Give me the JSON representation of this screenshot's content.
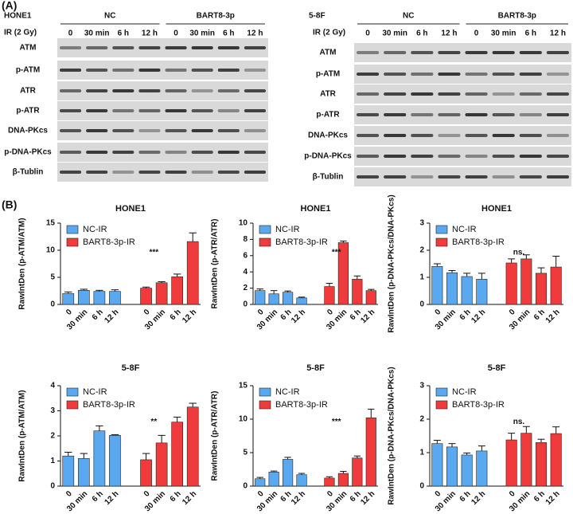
{
  "panel_a": {
    "label": "(A)",
    "blots": [
      {
        "cell": "HONE1",
        "ir_label": "IR (2 Gy)",
        "groups": [
          "NC",
          "BART8-3p"
        ],
        "lanes": [
          "0",
          "30 min",
          "6 h",
          "12 h"
        ],
        "proteins": [
          "ATM",
          "p-ATM",
          "ATR",
          "p-ATR",
          "DNA-PKcs",
          "p-DNA-PKcs",
          "β-Tublin"
        ]
      },
      {
        "cell": "5-8F",
        "ir_label": "IR (2 Gy)",
        "groups": [
          "NC",
          "BART8-3p"
        ],
        "lanes": [
          "0",
          "30 min",
          "6 h",
          "12 h"
        ],
        "proteins": [
          "ATM",
          "p-ATM",
          "ATR",
          "p-ATR",
          "DNA-PKcs",
          "p-DNA-PKcs",
          "β-Tublin"
        ]
      }
    ]
  },
  "panel_b": {
    "label": "(B)"
  },
  "chart_data": [
    {
      "type": "bar",
      "title": "HONE1",
      "y_label": "RawIntDen (p-ATM/ATM)",
      "categories": [
        "0",
        "30 min",
        "6 h",
        "12 h"
      ],
      "series": [
        {
          "name": "NC-IR",
          "color": "#5aa8ef",
          "values": [
            2.0,
            2.6,
            2.4,
            2.4
          ],
          "errors": [
            0.3,
            0.2,
            0.2,
            0.3
          ]
        },
        {
          "name": "BART8-3p-IR",
          "color": "#ef3b3b",
          "values": [
            3.0,
            4.0,
            5.1,
            11.6
          ],
          "errors": [
            0.2,
            0.2,
            0.5,
            1.6
          ]
        }
      ],
      "ylim": [
        0,
        15
      ],
      "yticks": [
        0,
        5,
        10,
        15
      ],
      "annotation": "***",
      "legend": "upper left"
    },
    {
      "type": "bar",
      "title": "HONE1",
      "y_label": "RawIntDen (p-ATR/ATR)",
      "categories": [
        "0",
        "30 min",
        "6 h",
        "12 h"
      ],
      "series": [
        {
          "name": "NC-IR",
          "color": "#5aa8ef",
          "values": [
            1.7,
            1.3,
            1.5,
            0.8
          ],
          "errors": [
            0.2,
            0.4,
            0.15,
            0.1
          ]
        },
        {
          "name": "BART8-3p-IR",
          "color": "#ef3b3b",
          "values": [
            2.2,
            7.6,
            3.1,
            1.7
          ],
          "errors": [
            0.4,
            0.2,
            0.4,
            0.15
          ]
        }
      ],
      "ylim": [
        0,
        10
      ],
      "yticks": [
        0,
        2,
        4,
        6,
        8,
        10
      ],
      "annotation": "***",
      "legend": "upper left"
    },
    {
      "type": "bar",
      "title": "HONE1",
      "y_label": "RawIntDen (p-DNA-PKcs/DNA-PKcs)",
      "categories": [
        "0",
        "30 min",
        "6 h",
        "12 h"
      ],
      "series": [
        {
          "name": "NC-IR",
          "color": "#5aa8ef",
          "values": [
            1.4,
            1.17,
            1.03,
            0.93
          ],
          "errors": [
            0.1,
            0.08,
            0.12,
            0.22
          ]
        },
        {
          "name": "BART8-3p-IR",
          "color": "#ef3b3b",
          "values": [
            1.53,
            1.68,
            1.15,
            1.38
          ],
          "errors": [
            0.15,
            0.15,
            0.2,
            0.4
          ]
        }
      ],
      "ylim": [
        0,
        3
      ],
      "yticks": [
        0,
        1,
        2,
        3
      ],
      "annotation": "ns.",
      "legend": "upper left"
    },
    {
      "type": "bar",
      "title": "5-8F",
      "y_label": "RawIntDen (p-ATM/ATM)",
      "categories": [
        "0",
        "30 min",
        "6 h",
        "12 h"
      ],
      "series": [
        {
          "name": "NC-IR",
          "color": "#5aa8ef",
          "values": [
            1.2,
            1.1,
            2.2,
            2.02
          ],
          "errors": [
            0.15,
            0.2,
            0.2,
            0.03
          ]
        },
        {
          "name": "BART8-3p-IR",
          "color": "#ef3b3b",
          "values": [
            1.05,
            1.72,
            2.55,
            3.15
          ],
          "errors": [
            0.25,
            0.3,
            0.2,
            0.15
          ]
        }
      ],
      "ylim": [
        0,
        4
      ],
      "yticks": [
        0,
        1,
        2,
        3,
        4
      ],
      "annotation": "**",
      "legend": "upper left"
    },
    {
      "type": "bar",
      "title": "5-8F",
      "y_label": "RawIntDen (p-ATR/ATR)",
      "categories": [
        "0",
        "30 min",
        "6 h",
        "12 h"
      ],
      "series": [
        {
          "name": "NC-IR",
          "color": "#5aa8ef",
          "values": [
            1.1,
            2.1,
            4.0,
            1.7
          ],
          "errors": [
            0.2,
            0.15,
            0.3,
            0.2
          ]
        },
        {
          "name": "BART8-3p-IR",
          "color": "#ef3b3b",
          "values": [
            1.2,
            1.9,
            4.2,
            10.2
          ],
          "errors": [
            0.2,
            0.3,
            0.3,
            1.3
          ]
        }
      ],
      "ylim": [
        0,
        15
      ],
      "yticks": [
        0,
        5,
        10,
        15
      ],
      "annotation": "***",
      "legend": "upper left"
    },
    {
      "type": "bar",
      "title": "5-8F",
      "y_label": "RawIntDen (p-DNA-PKcs/DNA-PKcs)",
      "categories": [
        "0",
        "30 min",
        "6 h",
        "12 h"
      ],
      "series": [
        {
          "name": "NC-IR",
          "color": "#5aa8ef",
          "values": [
            1.27,
            1.17,
            0.93,
            1.05
          ],
          "errors": [
            0.1,
            0.1,
            0.06,
            0.15
          ]
        },
        {
          "name": "BART8-3p-IR",
          "color": "#ef3b3b",
          "values": [
            1.38,
            1.58,
            1.3,
            1.57
          ],
          "errors": [
            0.2,
            0.2,
            0.1,
            0.2
          ]
        }
      ],
      "ylim": [
        0,
        3
      ],
      "yticks": [
        0,
        1,
        2,
        3
      ],
      "annotation": "ns.",
      "legend": "upper left"
    }
  ]
}
